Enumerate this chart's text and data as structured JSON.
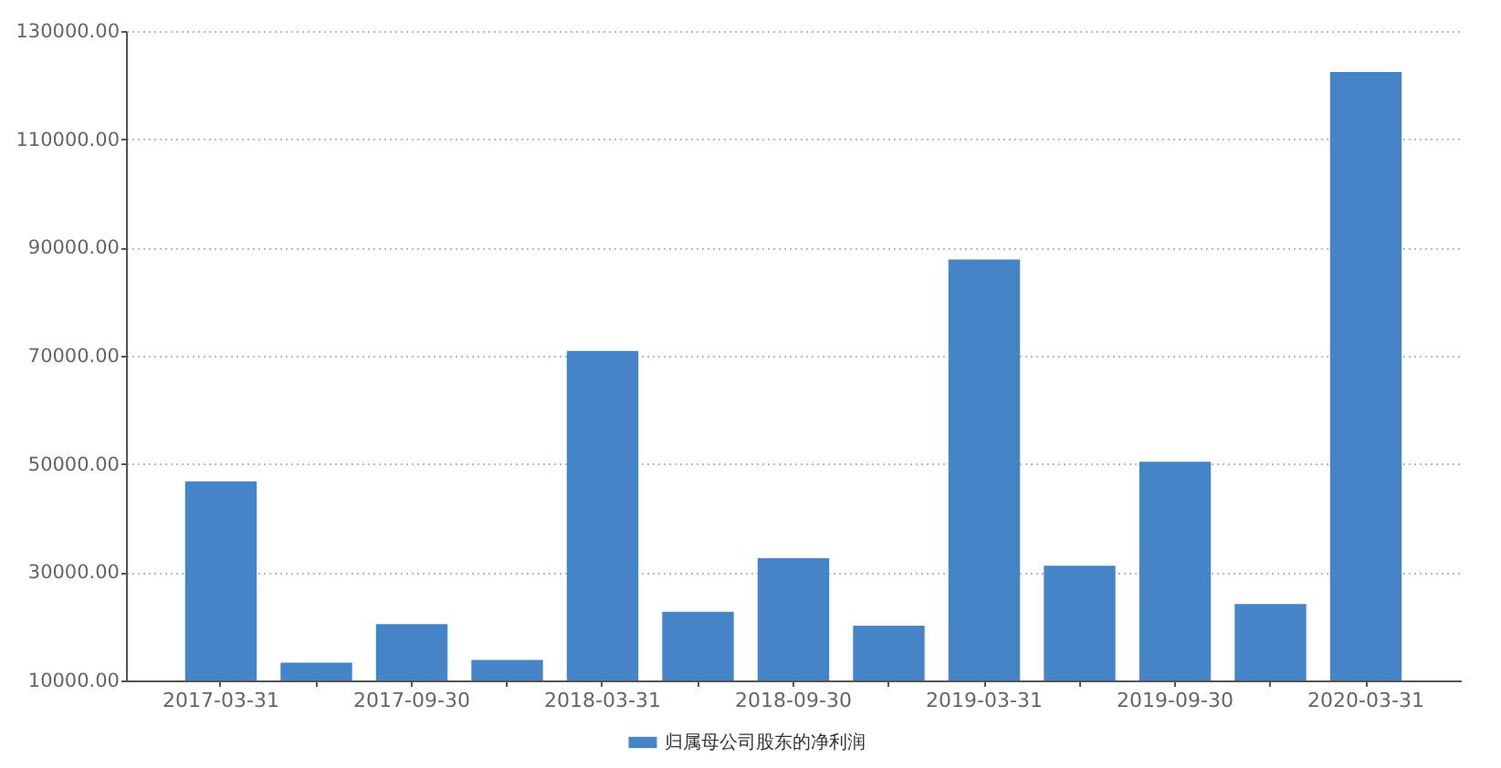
{
  "chart_data": {
    "type": "bar",
    "categories": [
      "2017-03-31",
      null,
      "2017-09-30",
      null,
      "2018-03-31",
      null,
      "2018-09-30",
      null,
      "2019-03-31",
      null,
      "2019-09-30",
      null,
      "2020-03-31"
    ],
    "series": [
      {
        "name": "归属母公司股东的净利润",
        "color": "#4684c8",
        "values": [
          46800,
          13300,
          20400,
          13800,
          70900,
          22700,
          32600,
          20100,
          87800,
          31200,
          50400,
          24100,
          122400
        ]
      }
    ],
    "ylim": [
      10000,
      130000
    ],
    "yticks": [
      {
        "value": 10000,
        "label": "10000.00"
      },
      {
        "value": 30000,
        "label": "30000.00"
      },
      {
        "value": 50000,
        "label": "50000.00"
      },
      {
        "value": 70000,
        "label": "70000.00"
      },
      {
        "value": 90000,
        "label": "90000.00"
      },
      {
        "value": 110000,
        "label": "110000.00"
      },
      {
        "value": 130000,
        "label": "130000.00"
      }
    ],
    "grid": "y",
    "legend": "bottom"
  }
}
